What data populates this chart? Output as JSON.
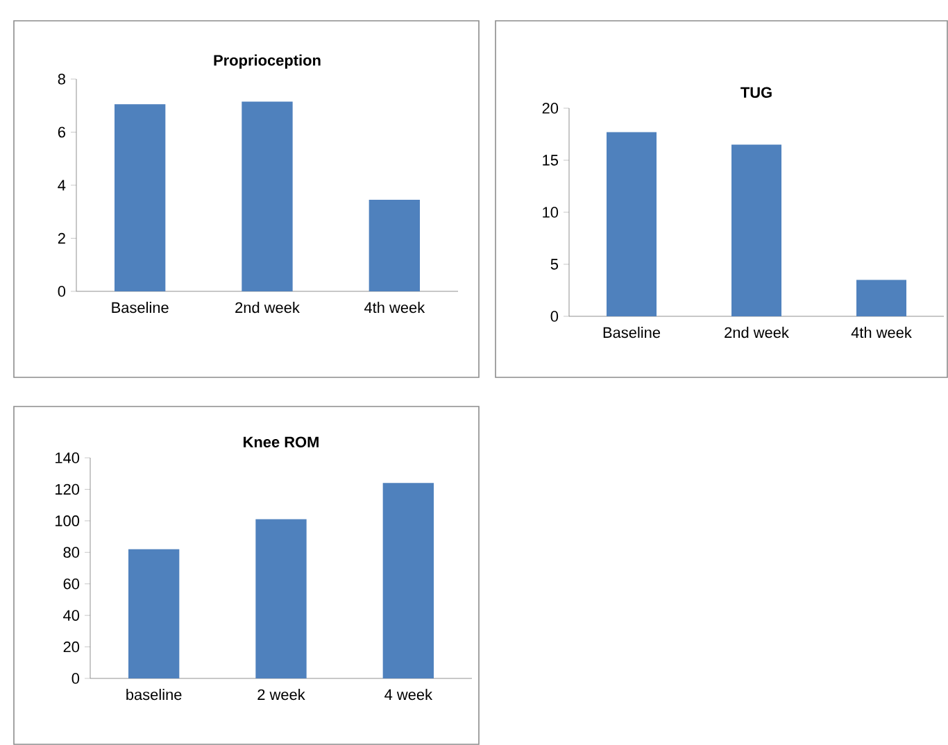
{
  "chart_data": [
    {
      "type": "bar",
      "title": "Proprioception",
      "categories": [
        "Baseline",
        "2nd week",
        "4th week"
      ],
      "values": [
        7.05,
        7.15,
        3.45
      ],
      "color": "#4f81bd",
      "ylim": [
        0,
        8
      ],
      "yticks": [
        0,
        2,
        4,
        6,
        8
      ]
    },
    {
      "type": "bar",
      "title": "TUG",
      "categories": [
        "Baseline",
        "2nd week",
        "4th week"
      ],
      "values": [
        17.7,
        16.5,
        3.5
      ],
      "color": "#4f81bd",
      "ylim": [
        0,
        20
      ],
      "yticks": [
        0,
        5,
        10,
        15,
        20
      ]
    },
    {
      "type": "bar",
      "title": "Knee ROM",
      "categories": [
        "baseline",
        "2 week",
        "4 week"
      ],
      "values": [
        82,
        101,
        124
      ],
      "color": "#4f81bd",
      "ylim": [
        0,
        140
      ],
      "yticks": [
        0,
        20,
        40,
        60,
        80,
        100,
        120,
        140
      ]
    }
  ]
}
